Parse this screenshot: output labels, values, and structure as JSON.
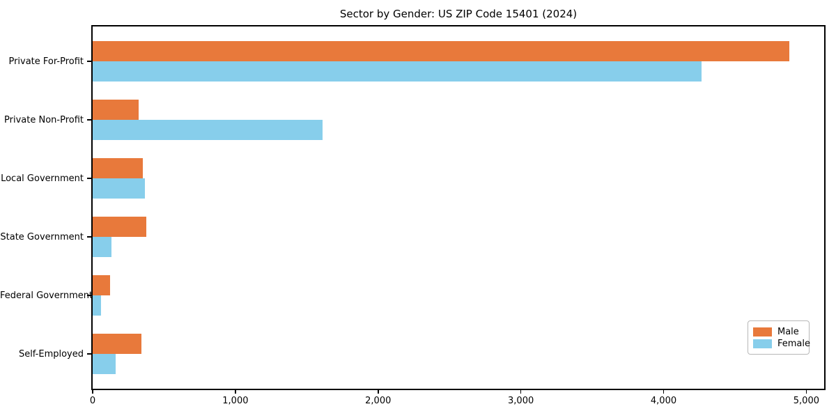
{
  "title": "Sector by Gender: US ZIP Code 15401 (2024)",
  "colors": {
    "male": "#e8793b",
    "female": "#87ceeb",
    "axis": "#000000",
    "legend_border": "#b7b7b7",
    "background": "#ffffff"
  },
  "chart_data": {
    "type": "bar",
    "orientation": "horizontal",
    "title": "Sector by Gender: US ZIP Code 15401 (2024)",
    "xlabel": "",
    "ylabel": "",
    "categories": [
      "Private For-Profit",
      "Private Non-Profit",
      "Local Government",
      "State Government",
      "Federal Government",
      "Self-Employed"
    ],
    "series": [
      {
        "name": "Male",
        "color": "#e8793b",
        "values": [
          4880,
          320,
          350,
          375,
          120,
          340
        ]
      },
      {
        "name": "Female",
        "color": "#87ceeb",
        "values": [
          4265,
          1610,
          365,
          130,
          60,
          160
        ]
      }
    ],
    "xlim": [
      0,
      5125
    ],
    "xticks": [
      0,
      1000,
      2000,
      3000,
      4000,
      5000
    ],
    "xtick_labels": [
      "0",
      "1,000",
      "2,000",
      "3,000",
      "4,000",
      "5,000"
    ],
    "grid": false,
    "legend_position": "lower right"
  },
  "legend": {
    "items": [
      {
        "label": "Male",
        "color": "#e8793b"
      },
      {
        "label": "Female",
        "color": "#87ceeb"
      }
    ]
  }
}
